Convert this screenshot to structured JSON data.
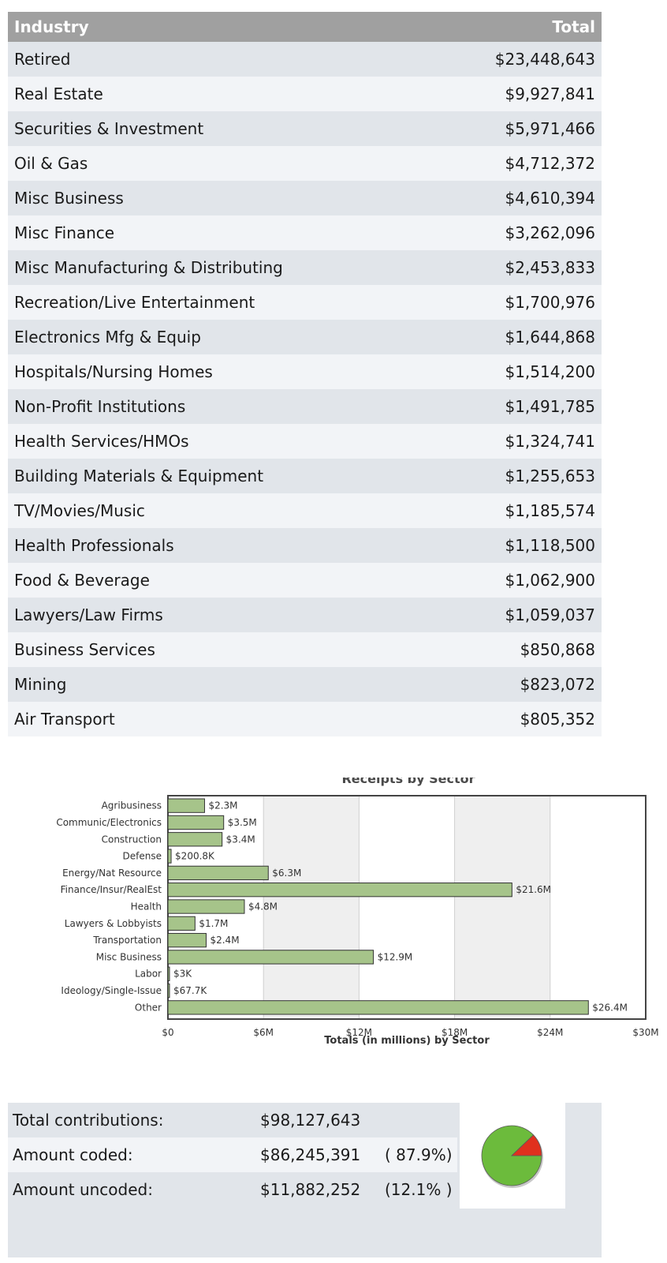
{
  "table": {
    "headers": {
      "industry": "Industry",
      "total": "Total"
    },
    "rows": [
      {
        "industry": "Retired",
        "total": "$23,448,643"
      },
      {
        "industry": "Real Estate",
        "total": "$9,927,841"
      },
      {
        "industry": "Securities & Investment",
        "total": "$5,971,466"
      },
      {
        "industry": "Oil & Gas",
        "total": "$4,712,372"
      },
      {
        "industry": "Misc Business",
        "total": "$4,610,394"
      },
      {
        "industry": "Misc Finance",
        "total": "$3,262,096"
      },
      {
        "industry": "Misc Manufacturing & Distributing",
        "total": "$2,453,833"
      },
      {
        "industry": "Recreation/Live Entertainment",
        "total": "$1,700,976"
      },
      {
        "industry": "Electronics Mfg & Equip",
        "total": "$1,644,868"
      },
      {
        "industry": "Hospitals/Nursing Homes",
        "total": "$1,514,200"
      },
      {
        "industry": "Non-Profit Institutions",
        "total": "$1,491,785"
      },
      {
        "industry": "Health Services/HMOs",
        "total": "$1,324,741"
      },
      {
        "industry": "Building Materials & Equipment",
        "total": "$1,255,653"
      },
      {
        "industry": "TV/Movies/Music",
        "total": "$1,185,574"
      },
      {
        "industry": "Health Professionals",
        "total": "$1,118,500"
      },
      {
        "industry": "Food & Beverage",
        "total": "$1,062,900"
      },
      {
        "industry": "Lawyers/Law Firms",
        "total": "$1,059,037"
      },
      {
        "industry": "Business Services",
        "total": "$850,868"
      },
      {
        "industry": "Mining",
        "total": "$823,072"
      },
      {
        "industry": "Air Transport",
        "total": "$805,352"
      }
    ]
  },
  "chart_data": [
    {
      "type": "bar",
      "orientation": "horizontal",
      "title": "Receipts by Sector",
      "xlabel": "Totals (in millions) by Sector",
      "ylabel": "",
      "categories": [
        "Agribusiness",
        "Communic/Electronics",
        "Construction",
        "Defense",
        "Energy/Nat Resource",
        "Finance/Insur/RealEst",
        "Health",
        "Lawyers & Lobbyists",
        "Transportation",
        "Misc Business",
        "Labor",
        "Ideology/Single-Issue",
        "Other"
      ],
      "values": [
        2.3,
        3.5,
        3.4,
        0.2008,
        6.3,
        21.6,
        4.8,
        1.7,
        2.4,
        12.9,
        0.003,
        0.0677,
        26.4
      ],
      "data_labels": [
        "$2.3M",
        "$3.5M",
        "$3.4M",
        "$200.8K",
        "$6.3M",
        "$21.6M",
        "$4.8M",
        "$1.7M",
        "$2.4M",
        "$12.9M",
        "$3K",
        "$67.7K",
        "$26.4M"
      ],
      "xlim": [
        0,
        30
      ],
      "xticks": [
        0,
        6,
        12,
        18,
        24,
        30
      ],
      "xtick_labels": [
        "$0",
        "$6M",
        "$12M",
        "$18M",
        "$24M",
        "$30M"
      ],
      "grid": "alternating vertical bands",
      "bar_color": "#a6c48a",
      "bar_edge_color": "#333333"
    },
    {
      "type": "pie",
      "categories": [
        "Amount coded",
        "Amount uncoded"
      ],
      "values": [
        87.9,
        12.1
      ],
      "colors": [
        "#6cbb3c",
        "#e0301e"
      ]
    }
  ],
  "summary": {
    "rows": [
      {
        "label": "Total contributions:",
        "value": "$98,127,643",
        "pct": ""
      },
      {
        "label": "Amount coded:",
        "value": "$86,245,391",
        "pct": "( 87.9%)"
      },
      {
        "label": "Amount uncoded:",
        "value": "$11,882,252",
        "pct": "(12.1% )"
      }
    ]
  }
}
